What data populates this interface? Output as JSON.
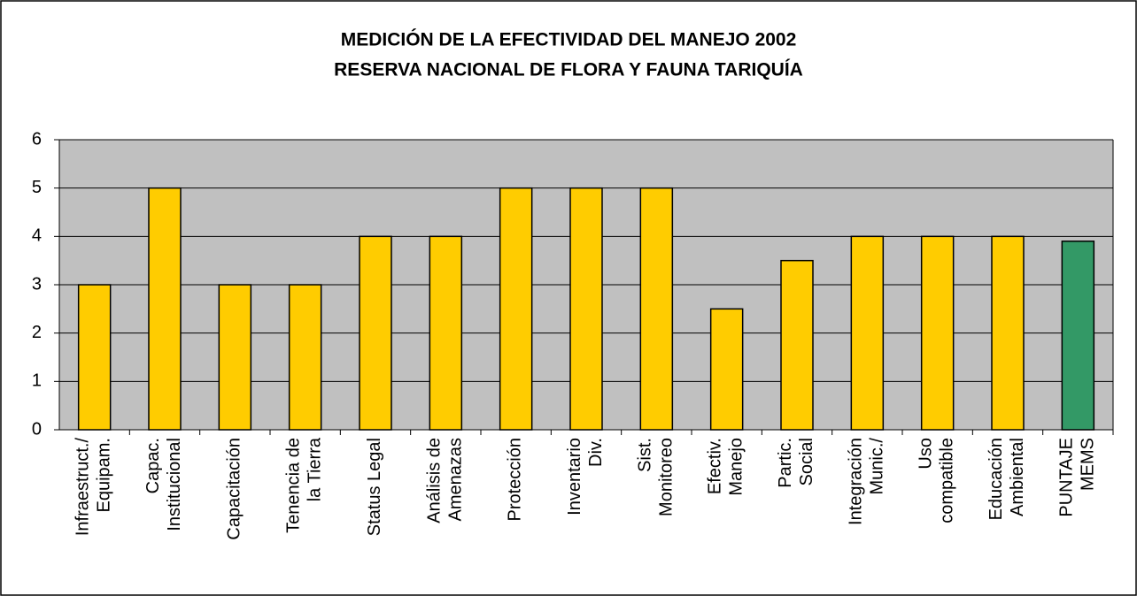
{
  "chart_data": {
    "type": "bar",
    "title": [
      "MEDICIÓN DE LA EFECTIVIDAD DEL MANEJO 2002",
      "RESERVA NACIONAL DE FLORA Y FAUNA TARIQUÍA"
    ],
    "categories": [
      "Infraestruct./\nEquipam.",
      "Capac.\nInstitucional",
      "Capacitación",
      "Tenencia de\nla Tierra",
      "Status Legal",
      "Análisis de\nAmenazas",
      "Protección",
      "Inventario\nDiv.",
      "Sist.\nMonitoreo",
      "Efectiv.\nManejo",
      "Partic.\nSocial",
      "Integración\nMunic./",
      "Uso\ncompatible",
      "Educación\nAmbiental",
      "PUNTAJE\nMEMS"
    ],
    "values": [
      3,
      5,
      3,
      3,
      4,
      4,
      5,
      5,
      5,
      2.5,
      3.5,
      4,
      4,
      4,
      3.9
    ],
    "colors": [
      "#ffcc00",
      "#ffcc00",
      "#ffcc00",
      "#ffcc00",
      "#ffcc00",
      "#ffcc00",
      "#ffcc00",
      "#ffcc00",
      "#ffcc00",
      "#ffcc00",
      "#ffcc00",
      "#ffcc00",
      "#ffcc00",
      "#ffcc00",
      "#339966"
    ],
    "ylim": [
      0,
      6
    ],
    "yticks": [
      0,
      1,
      2,
      3,
      4,
      5,
      6
    ],
    "grid": true
  }
}
